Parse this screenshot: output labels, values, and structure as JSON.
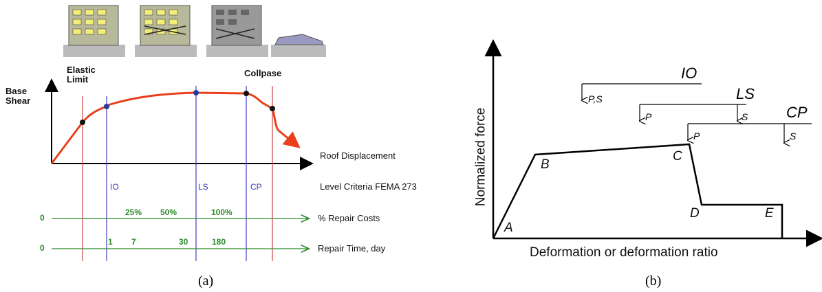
{
  "panel_a": {
    "caption": "(a)",
    "elastic_limit": "Elastic Limit",
    "collapse": "Collpase",
    "y_axis_label": "Base Shear",
    "x_axis_label": "Roof Displacement",
    "levels": [
      "IO",
      "LS",
      "CP"
    ],
    "levels_title": "Level Criteria FEMA 273",
    "repair_costs": {
      "start": "0",
      "marks": [
        "25%",
        "50%",
        "100%"
      ],
      "label": "% Repair Costs"
    },
    "repair_time": {
      "start": "0",
      "marks": [
        "1",
        "7",
        "30",
        "180"
      ],
      "label": "Repair Time, day"
    }
  },
  "panel_b": {
    "caption": "(b)",
    "y_axis_label": "Normalized force",
    "x_axis_label": "Deformation or deformation ratio",
    "points": [
      "A",
      "B",
      "C",
      "D",
      "E"
    ],
    "levels": [
      {
        "name": "IO",
        "arrows": [
          "P,S"
        ]
      },
      {
        "name": "LS",
        "arrows": [
          "P",
          "S"
        ]
      },
      {
        "name": "CP",
        "arrows": [
          "P",
          "S"
        ]
      }
    ]
  }
}
